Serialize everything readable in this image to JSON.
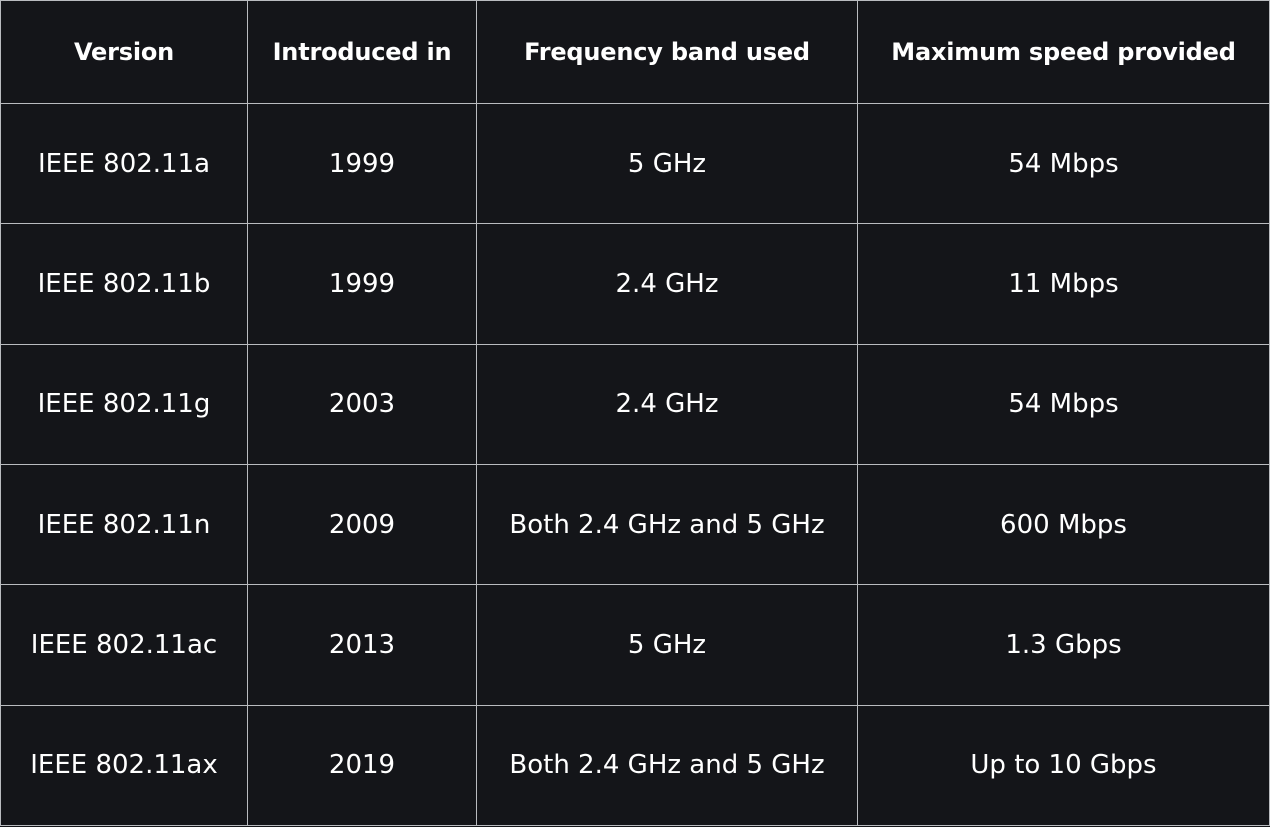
{
  "table": {
    "headers": [
      "Version",
      "Introduced in",
      "Frequency band used",
      "Maximum speed provided"
    ],
    "rows": [
      [
        "IEEE 802.11a",
        "1999",
        "5 GHz",
        "54 Mbps"
      ],
      [
        "IEEE 802.11b",
        "1999",
        "2.4 GHz",
        "11 Mbps"
      ],
      [
        "IEEE 802.11g",
        "2003",
        "2.4 GHz",
        "54 Mbps"
      ],
      [
        "IEEE 802.11n",
        "2009",
        "Both 2.4 GHz and 5 GHz",
        "600 Mbps"
      ],
      [
        "IEEE 802.11ac",
        "2013",
        "5 GHz",
        "1.3 Gbps"
      ],
      [
        "IEEE 802.11ax",
        "2019",
        "Both 2.4 GHz and 5 GHz",
        "Up to 10 Gbps"
      ]
    ]
  },
  "colors": {
    "background": "#141519",
    "text": "#ffffff",
    "border": "#b9bbbf"
  }
}
